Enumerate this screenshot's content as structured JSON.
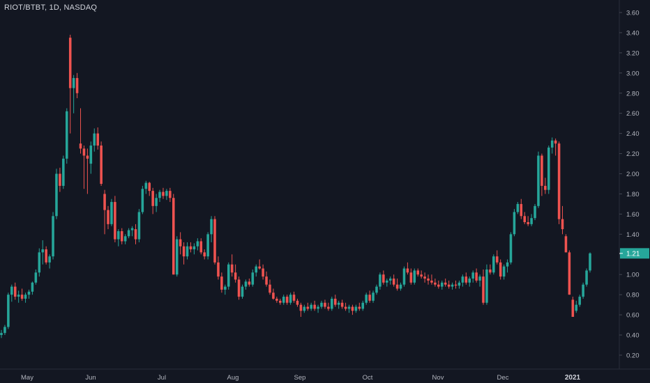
{
  "header": {
    "symbol_line": "RIOT/BTBT, 1D, NASDAQ"
  },
  "colors": {
    "background": "#131722",
    "up": "#26a69a",
    "down": "#ef5350",
    "grid": "#1e222d",
    "axis_text": "#b2b5be",
    "last_price_badge": "#26a69a"
  },
  "chart_data": {
    "type": "candlestick",
    "title": "RIOT/BTBT, 1D, NASDAQ",
    "ylim": [
      0.1,
      3.7
    ],
    "y_ticks": [
      0.2,
      0.4,
      0.6,
      0.8,
      1.0,
      1.2,
      1.4,
      1.6,
      1.8,
      2.0,
      2.2,
      2.4,
      2.6,
      2.8,
      3.0,
      3.2,
      3.4,
      3.6
    ],
    "x_tick_labels": [
      "May",
      "Jun",
      "Jul",
      "Aug",
      "Sep",
      "Oct",
      "Nov",
      "Dec",
      "2021"
    ],
    "last_price": "1.21",
    "grid": false,
    "candles": [
      [
        0.4,
        0.45,
        0.37,
        0.42
      ],
      [
        0.42,
        0.5,
        0.4,
        0.48
      ],
      [
        0.48,
        0.82,
        0.46,
        0.8
      ],
      [
        0.8,
        0.9,
        0.73,
        0.88
      ],
      [
        0.88,
        0.92,
        0.75,
        0.78
      ],
      [
        0.78,
        0.84,
        0.72,
        0.8
      ],
      [
        0.8,
        0.86,
        0.74,
        0.76
      ],
      [
        0.76,
        0.82,
        0.72,
        0.8
      ],
      [
        0.8,
        0.85,
        0.76,
        0.83
      ],
      [
        0.83,
        0.93,
        0.8,
        0.92
      ],
      [
        0.92,
        1.05,
        0.9,
        1.02
      ],
      [
        1.02,
        1.26,
        0.98,
        1.22
      ],
      [
        1.22,
        1.34,
        1.1,
        1.25
      ],
      [
        1.25,
        1.28,
        1.1,
        1.12
      ],
      [
        1.12,
        1.2,
        1.06,
        1.18
      ],
      [
        1.18,
        1.62,
        1.15,
        1.58
      ],
      [
        1.58,
        2.05,
        1.55,
        2.0
      ],
      [
        2.0,
        2.06,
        1.82,
        1.88
      ],
      [
        1.88,
        2.18,
        1.85,
        2.15
      ],
      [
        2.15,
        2.65,
        2.1,
        2.62
      ],
      [
        3.35,
        3.38,
        2.4,
        2.85
      ],
      [
        2.85,
        2.98,
        2.6,
        2.95
      ],
      [
        2.95,
        3.0,
        2.75,
        2.8
      ],
      [
        2.3,
        2.65,
        2.2,
        2.25
      ],
      [
        2.25,
        2.28,
        1.85,
        2.18
      ],
      [
        2.18,
        2.25,
        1.8,
        2.15
      ],
      [
        2.1,
        2.32,
        2.0,
        2.28
      ],
      [
        2.28,
        2.45,
        2.22,
        2.4
      ],
      [
        2.4,
        2.46,
        2.24,
        2.28
      ],
      [
        2.28,
        2.32,
        1.88,
        1.9
      ],
      [
        1.8,
        1.84,
        1.4,
        1.64
      ],
      [
        1.64,
        1.68,
        1.45,
        1.5
      ],
      [
        1.5,
        1.75,
        1.48,
        1.72
      ],
      [
        1.72,
        1.78,
        1.32,
        1.35
      ],
      [
        1.35,
        1.45,
        1.28,
        1.43
      ],
      [
        1.43,
        1.46,
        1.3,
        1.33
      ],
      [
        1.33,
        1.4,
        1.3,
        1.38
      ],
      [
        1.38,
        1.46,
        1.36,
        1.44
      ],
      [
        1.44,
        1.48,
        1.38,
        1.46
      ],
      [
        1.45,
        1.5,
        1.3,
        1.35
      ],
      [
        1.35,
        1.65,
        1.32,
        1.62
      ],
      [
        1.62,
        1.88,
        1.6,
        1.85
      ],
      [
        1.85,
        1.93,
        1.8,
        1.91
      ],
      [
        1.91,
        1.92,
        1.78,
        1.83
      ],
      [
        1.83,
        1.86,
        1.6,
        1.68
      ],
      [
        1.68,
        1.8,
        1.62,
        1.76
      ],
      [
        1.76,
        1.84,
        1.72,
        1.82
      ],
      [
        1.82,
        1.86,
        1.75,
        1.78
      ],
      [
        1.78,
        1.85,
        1.74,
        1.83
      ],
      [
        1.83,
        1.86,
        1.72,
        1.76
      ],
      [
        1.76,
        1.8,
        1.0,
        1.0
      ],
      [
        1.0,
        1.38,
        0.98,
        1.35
      ],
      [
        1.35,
        1.42,
        1.2,
        1.28
      ],
      [
        1.28,
        1.32,
        1.1,
        1.18
      ],
      [
        1.18,
        1.32,
        1.15,
        1.28
      ],
      [
        1.28,
        1.32,
        1.22,
        1.25
      ],
      [
        1.25,
        1.31,
        1.2,
        1.28
      ],
      [
        1.28,
        1.36,
        1.24,
        1.33
      ],
      [
        1.33,
        1.36,
        1.2,
        1.22
      ],
      [
        1.22,
        1.25,
        1.15,
        1.18
      ],
      [
        1.18,
        1.42,
        1.15,
        1.4
      ],
      [
        1.4,
        1.58,
        1.32,
        1.55
      ],
      [
        1.55,
        1.58,
        1.1,
        1.12
      ],
      [
        1.12,
        1.18,
        0.95,
        0.98
      ],
      [
        0.98,
        1.02,
        0.82,
        0.85
      ],
      [
        0.85,
        0.9,
        0.8,
        0.88
      ],
      [
        0.88,
        1.12,
        0.85,
        1.1
      ],
      [
        1.1,
        1.2,
        0.98,
        1.02
      ],
      [
        1.02,
        1.1,
        0.92,
        0.95
      ],
      [
        0.95,
        0.98,
        0.75,
        0.78
      ],
      [
        0.78,
        0.9,
        0.76,
        0.88
      ],
      [
        0.88,
        0.95,
        0.85,
        0.93
      ],
      [
        0.93,
        0.96,
        0.88,
        0.9
      ],
      [
        0.9,
        1.05,
        0.88,
        1.02
      ],
      [
        1.02,
        1.1,
        0.98,
        1.08
      ],
      [
        1.08,
        1.15,
        1.05,
        1.06
      ],
      [
        1.06,
        1.1,
        0.95,
        0.98
      ],
      [
        0.98,
        1.03,
        0.88,
        0.9
      ],
      [
        0.9,
        0.95,
        0.8,
        0.82
      ],
      [
        0.82,
        0.86,
        0.75,
        0.76
      ],
      [
        0.76,
        0.78,
        0.72,
        0.74
      ],
      [
        0.74,
        0.76,
        0.7,
        0.72
      ],
      [
        0.72,
        0.8,
        0.7,
        0.78
      ],
      [
        0.78,
        0.8,
        0.7,
        0.72
      ],
      [
        0.72,
        0.82,
        0.7,
        0.8
      ],
      [
        0.8,
        0.83,
        0.72,
        0.74
      ],
      [
        0.74,
        0.76,
        0.68,
        0.7
      ],
      [
        0.7,
        0.72,
        0.58,
        0.64
      ],
      [
        0.64,
        0.7,
        0.62,
        0.68
      ],
      [
        0.68,
        0.72,
        0.64,
        0.66
      ],
      [
        0.66,
        0.72,
        0.64,
        0.7
      ],
      [
        0.7,
        0.74,
        0.64,
        0.66
      ],
      [
        0.66,
        0.7,
        0.62,
        0.68
      ],
      [
        0.68,
        0.74,
        0.66,
        0.72
      ],
      [
        0.72,
        0.75,
        0.66,
        0.68
      ],
      [
        0.68,
        0.72,
        0.64,
        0.66
      ],
      [
        0.66,
        0.78,
        0.64,
        0.76
      ],
      [
        0.76,
        0.8,
        0.68,
        0.7
      ],
      [
        0.7,
        0.74,
        0.66,
        0.72
      ],
      [
        0.72,
        0.75,
        0.66,
        0.68
      ],
      [
        0.68,
        0.72,
        0.64,
        0.66
      ],
      [
        0.66,
        0.7,
        0.62,
        0.68
      ],
      [
        0.68,
        0.7,
        0.6,
        0.64
      ],
      [
        0.64,
        0.7,
        0.62,
        0.68
      ],
      [
        0.68,
        0.72,
        0.64,
        0.66
      ],
      [
        0.66,
        0.74,
        0.64,
        0.72
      ],
      [
        0.72,
        0.82,
        0.7,
        0.8
      ],
      [
        0.8,
        0.84,
        0.72,
        0.74
      ],
      [
        0.74,
        0.84,
        0.72,
        0.82
      ],
      [
        0.82,
        0.9,
        0.8,
        0.88
      ],
      [
        0.88,
        1.02,
        0.85,
        1.0
      ],
      [
        1.0,
        1.04,
        0.9,
        0.92
      ],
      [
        0.92,
        0.96,
        0.88,
        0.94
      ],
      [
        0.94,
        0.98,
        0.9,
        0.96
      ],
      [
        0.96,
        1.0,
        0.88,
        0.9
      ],
      [
        0.9,
        0.96,
        0.84,
        0.86
      ],
      [
        0.86,
        0.92,
        0.84,
        0.9
      ],
      [
        0.9,
        1.08,
        0.88,
        1.06
      ],
      [
        1.06,
        1.12,
        1.0,
        1.02
      ],
      [
        1.02,
        1.06,
        0.9,
        0.92
      ],
      [
        0.92,
        1.06,
        0.9,
        1.04
      ],
      [
        1.04,
        1.06,
        0.98,
        1.0
      ],
      [
        1.0,
        1.04,
        0.96,
        0.98
      ],
      [
        0.98,
        1.02,
        0.92,
        0.96
      ],
      [
        0.96,
        1.0,
        0.9,
        0.94
      ],
      [
        0.94,
        1.0,
        0.9,
        0.92
      ],
      [
        0.92,
        0.96,
        0.88,
        0.9
      ],
      [
        0.9,
        0.94,
        0.86,
        0.88
      ],
      [
        0.88,
        0.94,
        0.85,
        0.92
      ],
      [
        0.92,
        0.96,
        0.88,
        0.9
      ],
      [
        0.9,
        0.94,
        0.86,
        0.88
      ],
      [
        0.88,
        0.92,
        0.85,
        0.9
      ],
      [
        0.9,
        0.94,
        0.86,
        0.89
      ],
      [
        0.89,
        0.94,
        0.86,
        0.92
      ],
      [
        0.92,
        1.0,
        0.88,
        0.98
      ],
      [
        0.98,
        1.02,
        0.9,
        0.92
      ],
      [
        0.92,
        0.98,
        0.88,
        0.96
      ],
      [
        0.96,
        1.04,
        0.92,
        1.02
      ],
      [
        1.02,
        1.06,
        0.92,
        0.94
      ],
      [
        0.94,
        1.0,
        0.88,
        0.98
      ],
      [
        0.98,
        1.05,
        0.7,
        0.72
      ],
      [
        0.72,
        1.1,
        0.7,
        1.05
      ],
      [
        1.05,
        1.1,
        1.0,
        1.02
      ],
      [
        1.02,
        1.2,
        1.0,
        1.18
      ],
      [
        1.18,
        1.24,
        1.1,
        1.12
      ],
      [
        1.12,
        1.15,
        0.95,
        0.98
      ],
      [
        0.98,
        1.1,
        0.95,
        1.08
      ],
      [
        1.08,
        1.15,
        1.02,
        1.12
      ],
      [
        1.12,
        1.42,
        1.1,
        1.4
      ],
      [
        1.4,
        1.65,
        1.38,
        1.62
      ],
      [
        1.62,
        1.72,
        1.6,
        1.7
      ],
      [
        1.7,
        1.75,
        1.55,
        1.58
      ],
      [
        1.58,
        1.62,
        1.5,
        1.52
      ],
      [
        1.52,
        1.58,
        1.48,
        1.5
      ],
      [
        1.5,
        1.6,
        1.48,
        1.56
      ],
      [
        1.56,
        1.7,
        1.54,
        1.68
      ],
      [
        1.68,
        2.22,
        1.66,
        2.18
      ],
      [
        2.18,
        2.2,
        1.78,
        1.88
      ],
      [
        1.88,
        1.96,
        1.8,
        1.84
      ],
      [
        1.84,
        2.28,
        1.8,
        2.26
      ],
      [
        2.26,
        2.36,
        2.2,
        2.33
      ],
      [
        2.33,
        2.35,
        2.18,
        2.3
      ],
      [
        2.3,
        2.32,
        1.5,
        1.55
      ],
      [
        1.55,
        1.68,
        1.4,
        1.45
      ],
      [
        1.38,
        1.4,
        1.22,
        1.22
      ],
      [
        1.22,
        1.24,
        0.8,
        0.8
      ],
      [
        0.75,
        0.78,
        0.58,
        0.58
      ],
      [
        0.64,
        0.74,
        0.62,
        0.7
      ],
      [
        0.7,
        0.8,
        0.68,
        0.78
      ],
      [
        0.78,
        0.92,
        0.76,
        0.9
      ],
      [
        0.9,
        1.06,
        0.88,
        1.04
      ],
      [
        1.04,
        1.22,
        1.02,
        1.21
      ]
    ]
  }
}
